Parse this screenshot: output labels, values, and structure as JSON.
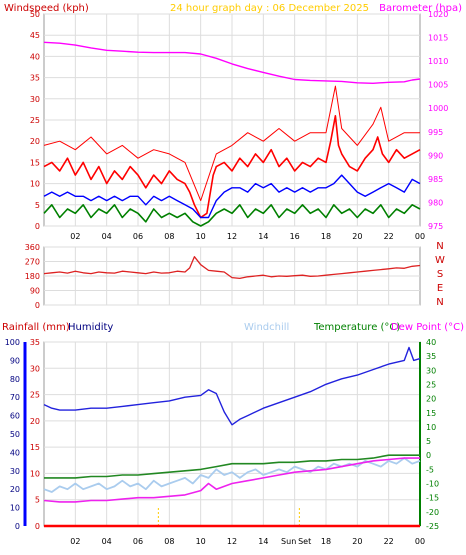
{
  "header": {
    "windspeed_label": "Windspeed (kph)",
    "graph_title": "24 hour graph day : 06 December 2025",
    "barometer_label": "Barometer (hpa)",
    "rainfall_label": "Rainfall (mm)",
    "humidity_label": "Humidity",
    "windchill_label": "Windchill",
    "temperature_label": "Temperature (°C)",
    "dewpoint_label": "Dew Point (°C)",
    "sunrise_label": "Sun",
    "sunset_label": "Set"
  },
  "colors": {
    "wind": "#ff0000",
    "wind_dark": "#cc0000",
    "avg_wind": "#0000ff",
    "gust_low": "#008000",
    "barometer": "#ff00ff",
    "direction": "#dd2222",
    "humidity": "#2222dd",
    "windchill": "#aaccee",
    "temperature": "#228822",
    "dewpoint": "#ee22ee",
    "rain_axis": "#ff0000",
    "humidity_axis": "#0000ff",
    "temp_axis": "#008000",
    "sun_marker": "#ffcc00",
    "grid": "#dddddd",
    "frame": "#999999",
    "text": "#000000"
  },
  "x_axis": {
    "ticks": [
      "02",
      "04",
      "06",
      "08",
      "10",
      "12",
      "14",
      "16",
      "18",
      "20",
      "22",
      "00"
    ]
  },
  "chart_data": [
    {
      "type": "line",
      "name": "wind-barometer",
      "ylim_left": [
        0,
        50
      ],
      "yticks_left": [
        "0",
        "5",
        "10",
        "15",
        "20",
        "25",
        "30",
        "35",
        "40",
        "45",
        "50"
      ],
      "ylim_right": [
        975,
        1020
      ],
      "yticks_right": [
        "975",
        "980",
        "985",
        "990",
        "995",
        "1000",
        "1005",
        "1010",
        "1015",
        "1020"
      ],
      "grid": true,
      "series": [
        {
          "name": "Barometer (hpa)",
          "axis": "right",
          "hours": [
            0,
            1,
            2,
            3,
            4,
            5,
            6,
            7,
            8,
            9,
            10,
            11,
            12,
            13,
            14,
            15,
            16,
            17,
            18,
            19,
            20,
            21,
            22,
            23,
            23.5,
            24
          ],
          "values": [
            1014,
            1013.8,
            1013.4,
            1012.8,
            1012.3,
            1012.1,
            1011.9,
            1011.8,
            1011.8,
            1011.8,
            1011.5,
            1010.6,
            1009.4,
            1008.4,
            1007.6,
            1006.8,
            1006.1,
            1005.9,
            1005.8,
            1005.7,
            1005.4,
            1005.3,
            1005.5,
            1005.6,
            1006,
            1006.2
          ]
        },
        {
          "name": "Wind speed",
          "axis": "left",
          "hours": [
            0,
            0.5,
            1,
            1.5,
            2,
            2.5,
            3,
            3.5,
            4,
            4.5,
            5,
            5.5,
            6,
            6.5,
            7,
            7.5,
            8,
            8.5,
            9,
            9.3,
            9.6,
            10,
            10.4,
            10.8,
            11,
            11.5,
            12,
            12.5,
            13,
            13.5,
            14,
            14.5,
            15,
            15.5,
            16,
            16.5,
            17,
            17.5,
            18,
            18.3,
            18.6,
            18.8,
            19,
            19.5,
            20,
            20.5,
            21,
            21.3,
            21.6,
            22,
            22.5,
            23,
            23.5,
            24
          ],
          "values": [
            14,
            15,
            13,
            16,
            12,
            15,
            11,
            14,
            10,
            13,
            11,
            14,
            12,
            9,
            12,
            10,
            13,
            11,
            10,
            8,
            5,
            2,
            3,
            12,
            14,
            15,
            13,
            16,
            14,
            17,
            15,
            18,
            14,
            16,
            13,
            15,
            14,
            16,
            15,
            20,
            26,
            19,
            17,
            14,
            13,
            16,
            18,
            21,
            17,
            15,
            18,
            16,
            17,
            18
          ]
        },
        {
          "name": "Gust",
          "axis": "left",
          "hours": [
            0,
            1,
            2,
            3,
            4,
            5,
            6,
            7,
            8,
            9,
            10,
            11,
            12,
            13,
            14,
            15,
            16,
            17,
            18,
            18.6,
            19,
            20,
            21,
            21.5,
            22,
            23,
            24
          ],
          "values": [
            19,
            20,
            18,
            21,
            17,
            19,
            16,
            18,
            17,
            15,
            6,
            17,
            19,
            22,
            20,
            23,
            20,
            22,
            22,
            33,
            23,
            19,
            24,
            28,
            20,
            22,
            22
          ]
        },
        {
          "name": "Average wind",
          "axis": "left",
          "hours": [
            0,
            0.5,
            1,
            1.5,
            2,
            2.5,
            3,
            3.5,
            4,
            4.5,
            5,
            5.5,
            6,
            6.5,
            7,
            7.5,
            8,
            8.5,
            9,
            9.5,
            10,
            10.5,
            11,
            11.5,
            12,
            12.5,
            13,
            13.5,
            14,
            14.5,
            15,
            15.5,
            16,
            16.5,
            17,
            17.5,
            18,
            18.5,
            19,
            19.5,
            20,
            20.5,
            21,
            21.5,
            22,
            22.5,
            23,
            23.5,
            24
          ],
          "values": [
            7,
            8,
            7,
            8,
            7,
            7,
            6,
            7,
            6,
            7,
            6,
            7,
            7,
            5,
            7,
            6,
            7,
            6,
            5,
            4,
            2,
            2,
            6,
            8,
            9,
            9,
            8,
            10,
            9,
            10,
            8,
            9,
            8,
            9,
            8,
            9,
            9,
            10,
            12,
            10,
            8,
            7,
            8,
            9,
            10,
            9,
            8,
            11,
            10
          ]
        },
        {
          "name": "Low wind",
          "axis": "left",
          "hours": [
            0,
            0.5,
            1,
            1.5,
            2,
            2.5,
            3,
            3.5,
            4,
            4.5,
            5,
            5.5,
            6,
            6.5,
            7,
            7.5,
            8,
            8.5,
            9,
            9.5,
            10,
            10.5,
            11,
            11.5,
            12,
            12.5,
            13,
            13.5,
            14,
            14.5,
            15,
            15.5,
            16,
            16.5,
            17,
            17.5,
            18,
            18.5,
            19,
            19.5,
            20,
            20.5,
            21,
            21.5,
            22,
            22.5,
            23,
            23.5,
            24
          ],
          "values": [
            3,
            5,
            2,
            4,
            3,
            5,
            2,
            4,
            3,
            5,
            2,
            4,
            3,
            1,
            4,
            2,
            3,
            2,
            3,
            1,
            0,
            1,
            3,
            4,
            3,
            5,
            2,
            4,
            3,
            5,
            2,
            4,
            3,
            5,
            3,
            4,
            2,
            5,
            3,
            4,
            2,
            4,
            3,
            5,
            2,
            4,
            3,
            5,
            4
          ]
        }
      ]
    },
    {
      "type": "line",
      "name": "wind-direction",
      "ylim": [
        0,
        360
      ],
      "yticks": [
        "0",
        "90",
        "180",
        "270",
        "360"
      ],
      "compass": [
        "N",
        "W",
        "S",
        "E",
        "N"
      ],
      "series": [
        {
          "name": "Wind direction",
          "hours": [
            0,
            0.5,
            1,
            1.5,
            2,
            2.5,
            3,
            3.5,
            4,
            4.5,
            5,
            5.5,
            6,
            6.5,
            7,
            7.5,
            8,
            8.5,
            9,
            9.3,
            9.6,
            10,
            10.5,
            11,
            11.5,
            12,
            12.5,
            13,
            13.5,
            14,
            14.5,
            15,
            15.5,
            16,
            16.5,
            17,
            17.5,
            18,
            18.5,
            19,
            19.5,
            20,
            20.5,
            21,
            21.5,
            22,
            22.5,
            23,
            23.5,
            24
          ],
          "values": [
            195,
            200,
            205,
            198,
            210,
            200,
            195,
            205,
            200,
            198,
            210,
            205,
            200,
            195,
            205,
            198,
            200,
            210,
            205,
            230,
            300,
            250,
            215,
            210,
            205,
            170,
            165,
            175,
            180,
            185,
            175,
            180,
            178,
            182,
            185,
            178,
            180,
            185,
            190,
            195,
            200,
            205,
            210,
            215,
            220,
            225,
            230,
            228,
            240,
            245
          ]
        }
      ]
    },
    {
      "type": "line",
      "name": "rain-humidity-temperature",
      "ylim_rain": [
        0,
        35
      ],
      "yticks_rain": [
        "0",
        "5",
        "10",
        "15",
        "20",
        "25",
        "30",
        "35"
      ],
      "ylim_humidity": [
        0,
        100
      ],
      "yticks_humidity": [
        "0",
        "10",
        "20",
        "30",
        "40",
        "50",
        "60",
        "70",
        "80",
        "90",
        "100"
      ],
      "ylim_temp": [
        -25,
        40
      ],
      "yticks_temp": [
        "-25",
        "-20",
        "-15",
        "-10",
        "-5",
        "0",
        "5",
        "10",
        "15",
        "20",
        "25",
        "30",
        "35",
        "40"
      ],
      "sunrise_hour": 7.3,
      "sunset_hour": 16.3,
      "series": [
        {
          "name": "Humidity",
          "axis": "humidity",
          "hours": [
            0,
            0.5,
            1,
            2,
            3,
            4,
            5,
            6,
            7,
            8,
            9,
            10,
            10.5,
            11,
            11.5,
            12,
            12.5,
            13,
            14,
            15,
            16,
            17,
            18,
            19,
            20,
            21,
            22,
            23,
            23.3,
            23.6,
            24
          ],
          "values": [
            66,
            64,
            63,
            63,
            64,
            64,
            65,
            66,
            67,
            68,
            70,
            71,
            74,
            72,
            62,
            55,
            58,
            60,
            64,
            67,
            70,
            73,
            77,
            80,
            82,
            85,
            88,
            90,
            97,
            90,
            91
          ]
        },
        {
          "name": "Windchill",
          "axis": "temp",
          "hours": [
            0,
            0.5,
            1,
            1.5,
            2,
            2.5,
            3,
            3.5,
            4,
            4.5,
            5,
            5.5,
            6,
            6.5,
            7,
            7.5,
            8,
            8.5,
            9,
            9.5,
            10,
            10.5,
            11,
            11.5,
            12,
            12.5,
            13,
            13.5,
            14,
            14.5,
            15,
            15.5,
            16,
            16.5,
            17,
            17.5,
            18,
            18.5,
            19,
            19.5,
            20,
            20.5,
            21,
            21.5,
            22,
            22.5,
            23,
            23.5,
            24
          ],
          "values": [
            -12,
            -13,
            -11,
            -12,
            -10,
            -12,
            -11,
            -10,
            -12,
            -11,
            -9,
            -11,
            -10,
            -12,
            -9,
            -11,
            -10,
            -9,
            -8,
            -10,
            -7,
            -8,
            -5,
            -7,
            -6,
            -8,
            -6,
            -5,
            -7,
            -6,
            -5,
            -6,
            -4,
            -5,
            -6,
            -4,
            -5,
            -3,
            -4,
            -3,
            -4,
            -2,
            -3,
            -4,
            -2,
            -3,
            -1,
            -3,
            -2
          ]
        },
        {
          "name": "Temperature",
          "axis": "temp",
          "hours": [
            0,
            1,
            2,
            3,
            4,
            5,
            6,
            7,
            8,
            9,
            10,
            11,
            12,
            13,
            14,
            15,
            16,
            17,
            18,
            19,
            20,
            21,
            22,
            23,
            24
          ],
          "values": [
            -8,
            -8,
            -8,
            -7.5,
            -7.5,
            -7,
            -7,
            -6.5,
            -6,
            -5.5,
            -5,
            -4,
            -3,
            -3,
            -3,
            -2.5,
            -2.5,
            -2,
            -2,
            -1.5,
            -1.5,
            -1,
            0,
            0,
            0
          ]
        },
        {
          "name": "Dew Point",
          "axis": "temp",
          "hours": [
            0,
            1,
            2,
            3,
            4,
            5,
            6,
            7,
            8,
            9,
            10,
            10.5,
            11,
            12,
            13,
            14,
            15,
            16,
            17,
            18,
            19,
            20,
            21,
            22,
            23,
            24
          ],
          "values": [
            -16,
            -16.5,
            -16.5,
            -16,
            -16,
            -15.5,
            -15,
            -15,
            -14.5,
            -14,
            -12.5,
            -10,
            -12,
            -10,
            -9,
            -8,
            -7,
            -6,
            -5.5,
            -5,
            -4,
            -3,
            -2,
            -1.5,
            -1,
            -1
          ]
        },
        {
          "name": "Rainfall",
          "axis": "rain",
          "hours": [
            0,
            24
          ],
          "values": [
            0,
            0
          ]
        }
      ]
    }
  ]
}
